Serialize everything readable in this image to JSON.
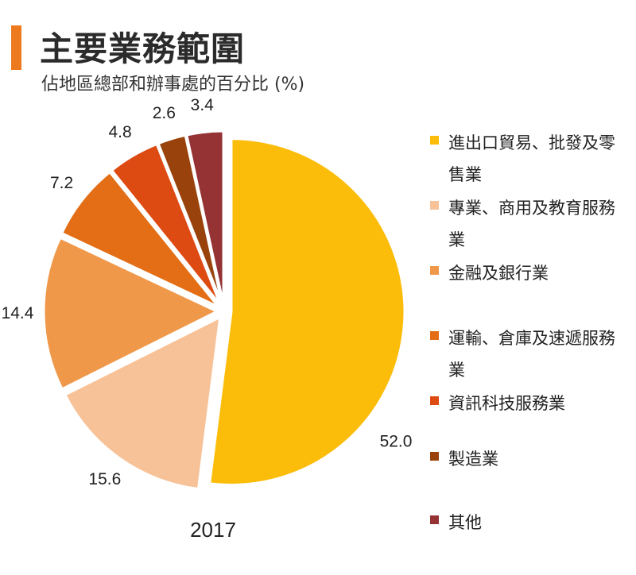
{
  "title": "主要業務範圍",
  "subtitle": "佔地區總部和辦事處的百分比 (%)",
  "colors": {
    "title_bar": "#EE7A1F"
  },
  "chart_data": {
    "type": "pie",
    "title": "主要業務範圍",
    "subtitle": "佔地區總部和辦事處的百分比 (%)",
    "year_label": "2017",
    "unit": "%",
    "legend_position": "right",
    "slices": [
      {
        "name": "進出口貿易、批發及零售業",
        "value": 52.0,
        "label": "52.0",
        "color": "#FBBD0A"
      },
      {
        "name": "專業、商用及教育服務業",
        "value": 15.6,
        "label": "15.6",
        "color": "#F7C298"
      },
      {
        "name": "金融及銀行業",
        "value": 14.4,
        "label": "14.4",
        "color": "#F0984A"
      },
      {
        "name": "運輸、倉庫及速遞服務業",
        "value": 7.2,
        "label": "7.2",
        "color": "#E36E15"
      },
      {
        "name": "資訊科技服務業",
        "value": 4.8,
        "label": "4.8",
        "color": "#DD4A12"
      },
      {
        "name": "製造業",
        "value": 2.6,
        "label": "2.6",
        "color": "#99420B"
      },
      {
        "name": "其他",
        "value": 3.4,
        "label": "3.4",
        "color": "#943234"
      }
    ]
  }
}
